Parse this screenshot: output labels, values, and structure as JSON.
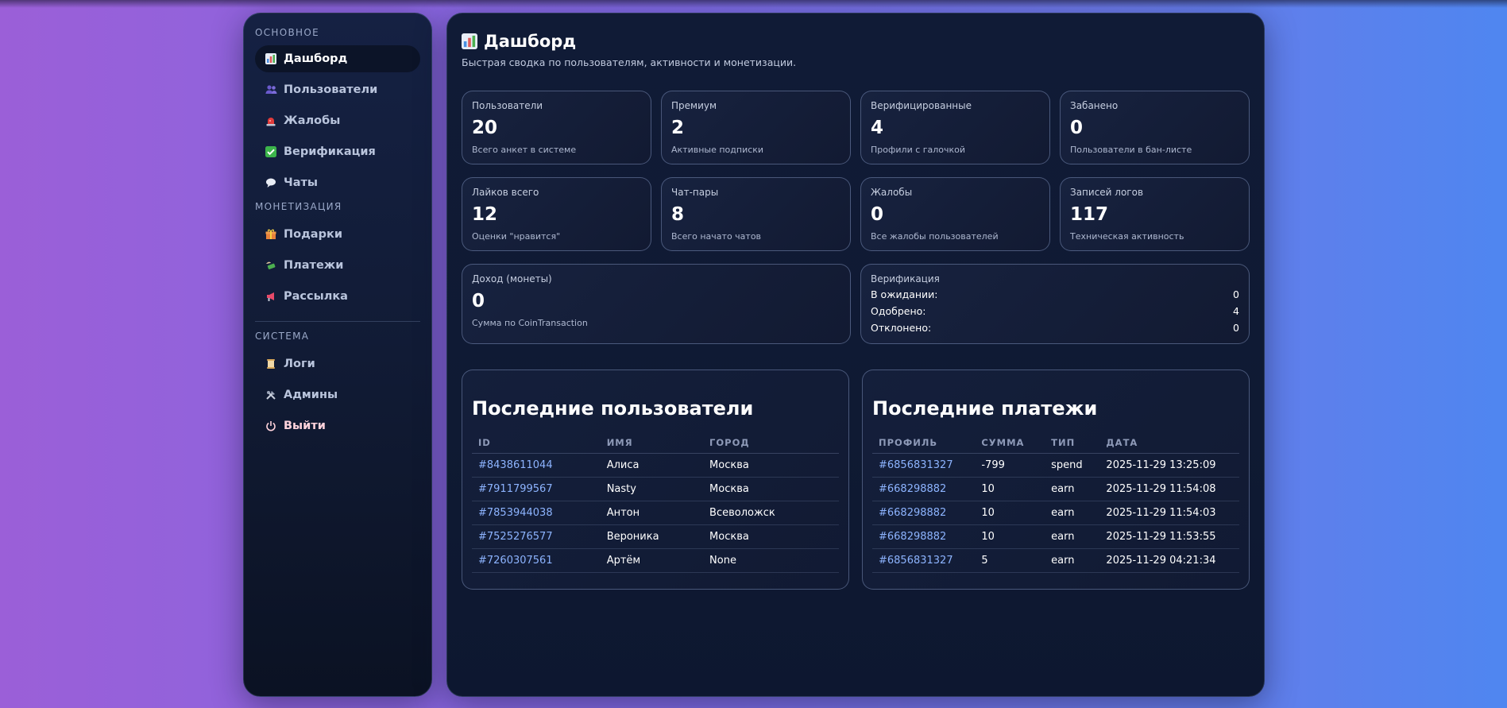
{
  "sidebar": {
    "sections": [
      {
        "title": "ОСНОВНОЕ",
        "items": [
          {
            "label": "Дашборд",
            "icon": "bar-chart-icon"
          },
          {
            "label": "Пользователи",
            "icon": "users-icon"
          },
          {
            "label": "Жалобы",
            "icon": "siren-icon"
          },
          {
            "label": "Верификация",
            "icon": "check-mark-icon"
          },
          {
            "label": "Чаты",
            "icon": "speech-bubble-icon"
          }
        ]
      },
      {
        "title": "МОНЕТИЗАЦИЯ",
        "items": [
          {
            "label": "Подарки",
            "icon": "gift-icon"
          },
          {
            "label": "Платежи",
            "icon": "money-wings-icon"
          },
          {
            "label": "Рассылка",
            "icon": "megaphone-icon"
          }
        ]
      },
      {
        "title": "СИСТЕМА",
        "items": [
          {
            "label": "Логи",
            "icon": "scroll-icon"
          },
          {
            "label": "Админы",
            "icon": "tools-icon"
          },
          {
            "label": "Выйти",
            "icon": "power-icon"
          }
        ]
      }
    ]
  },
  "header": {
    "title": "Дашборд",
    "subtitle": "Быстрая сводка по пользователям, активности и монетизации."
  },
  "stats": [
    {
      "label": "Пользователи",
      "value": "20",
      "desc": "Всего анкет в системе"
    },
    {
      "label": "Премиум",
      "value": "2",
      "desc": "Активные подписки"
    },
    {
      "label": "Верифицированные",
      "value": "4",
      "desc": "Профили с галочкой"
    },
    {
      "label": "Забанено",
      "value": "0",
      "desc": "Пользователи в бан-листе"
    },
    {
      "label": "Лайков всего",
      "value": "12",
      "desc": "Оценки \"нравится\""
    },
    {
      "label": "Чат-пары",
      "value": "8",
      "desc": "Всего начато чатов"
    },
    {
      "label": "Жалобы",
      "value": "0",
      "desc": "Все жалобы пользователей"
    },
    {
      "label": "Записей логов",
      "value": "117",
      "desc": "Техническая активность"
    }
  ],
  "income": {
    "label": "Доход (монеты)",
    "value": "0",
    "desc": "Сумма по CoinTransaction"
  },
  "verification": {
    "label": "Верификация",
    "rows": [
      {
        "label": "В ожидании:",
        "value": "0"
      },
      {
        "label": "Одобрено:",
        "value": "4"
      },
      {
        "label": "Отклонено:",
        "value": "0"
      }
    ]
  },
  "recent_users": {
    "title": "Последние пользователи",
    "headers": [
      "ID",
      "ИМЯ",
      "ГОРОД"
    ],
    "rows": [
      [
        "#8438611044",
        "Алиса",
        "Москва"
      ],
      [
        "#7911799567",
        "Nasty",
        "Москва"
      ],
      [
        "#7853944038",
        "Антон",
        "Всеволожск"
      ],
      [
        "#7525276577",
        "Вероника",
        "Москва"
      ],
      [
        "#7260307561",
        "Артём",
        "None"
      ]
    ]
  },
  "recent_payments": {
    "title": "Последние платежи",
    "headers": [
      "ПРОФИЛЬ",
      "СУММА",
      "ТИП",
      "ДАТА"
    ],
    "rows": [
      [
        "#6856831327",
        "-799",
        "spend",
        "2025-11-29 13:25:09"
      ],
      [
        "#668298882",
        "10",
        "earn",
        "2025-11-29 11:54:08"
      ],
      [
        "#668298882",
        "10",
        "earn",
        "2025-11-29 11:54:03"
      ],
      [
        "#668298882",
        "10",
        "earn",
        "2025-11-29 11:53:55"
      ],
      [
        "#6856831327",
        "5",
        "earn",
        "2025-11-29 04:21:34"
      ]
    ]
  },
  "colors": {
    "accent_link": "#8db4ff",
    "panel": "#0f1a33",
    "logout": "#ffd3dc"
  }
}
